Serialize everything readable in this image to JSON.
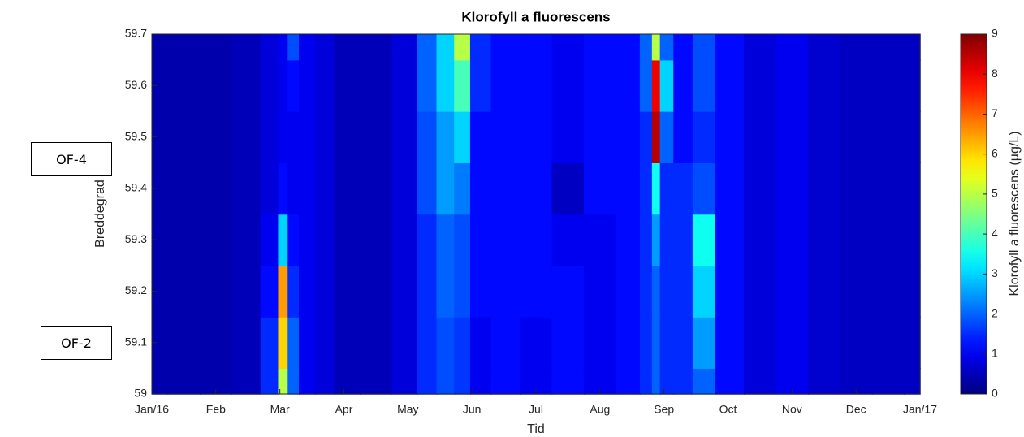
{
  "chart_data": {
    "type": "contour",
    "title": "Klorofyll a fluorescens",
    "xlabel": "Tid",
    "ylabel": "Breddegrad",
    "colorbar_label": "Klorofyll a fluorescens (µg/L)",
    "colormap": "jet",
    "annotations": [
      "OF-4",
      "OF-2"
    ],
    "xlim": [
      0,
      12
    ],
    "xticks": [
      {
        "value": 0,
        "label": "Jan/16"
      },
      {
        "value": 1,
        "label": "Feb"
      },
      {
        "value": 2,
        "label": "Mar"
      },
      {
        "value": 3,
        "label": "Apr"
      },
      {
        "value": 4,
        "label": "May"
      },
      {
        "value": 5,
        "label": "Jun"
      },
      {
        "value": 6,
        "label": "Jul"
      },
      {
        "value": 7,
        "label": "Aug"
      },
      {
        "value": 8,
        "label": "Sep"
      },
      {
        "value": 9,
        "label": "Oct"
      },
      {
        "value": 10,
        "label": "Nov"
      },
      {
        "value": 11,
        "label": "Dec"
      },
      {
        "value": 12,
        "label": "Jan/17"
      }
    ],
    "ylim": [
      59,
      59.7
    ],
    "yticks": [
      59,
      59.1,
      59.2,
      59.3,
      59.4,
      59.5,
      59.6,
      59.7
    ],
    "clim": [
      0,
      9
    ],
    "cticks": [
      0,
      1,
      2,
      3,
      4,
      5,
      6,
      7,
      8,
      9
    ],
    "x": [
      0,
      0.5,
      1,
      1.5,
      1.9,
      2.05,
      2.2,
      2.4,
      2.7,
      3,
      3.5,
      4,
      4.3,
      4.6,
      4.85,
      5.1,
      5.5,
      6,
      6.5,
      7,
      7.5,
      7.75,
      7.88,
      8,
      8.3,
      8.6,
      9,
      9.5,
      10,
      10.5,
      11,
      11.5,
      12
    ],
    "y": [
      59,
      59.1,
      59.2,
      59.3,
      59.4,
      59.5,
      59.6,
      59.7
    ],
    "z": [
      [
        0.4,
        0.4,
        0.4,
        0.5,
        1.5,
        5,
        2,
        1,
        0.8,
        0.5,
        0.5,
        0.8,
        1.5,
        1.8,
        1.6,
        1,
        1.2,
        1,
        1.2,
        1,
        1.2,
        1.5,
        2,
        1.5,
        1.5,
        2,
        1.2,
        0.8,
        1,
        0.7,
        0.6,
        0.6,
        0.6
      ],
      [
        0.4,
        0.4,
        0.4,
        0.5,
        1.5,
        6,
        2,
        1,
        0.8,
        0.5,
        0.5,
        0.8,
        1.5,
        1.8,
        1.6,
        1,
        1.2,
        1,
        1.2,
        1,
        1.2,
        1.5,
        2,
        1.5,
        1.5,
        2.5,
        1.2,
        0.8,
        1,
        0.7,
        0.6,
        0.6,
        0.6
      ],
      [
        0.4,
        0.4,
        0.4,
        0.5,
        1.2,
        6.5,
        1.5,
        1,
        0.8,
        0.5,
        0.5,
        0.8,
        1.5,
        2,
        1.8,
        1.2,
        1.2,
        1.2,
        1.2,
        1,
        1.2,
        1.5,
        2,
        1.5,
        1.5,
        3,
        1.2,
        0.8,
        1,
        0.7,
        0.6,
        0.6,
        0.6
      ],
      [
        0.4,
        0.4,
        0.4,
        0.5,
        1,
        3,
        1.2,
        1,
        0.8,
        0.5,
        0.5,
        0.8,
        1.5,
        2,
        1.8,
        1.2,
        1.2,
        1.2,
        1,
        1,
        1.2,
        1.5,
        2.5,
        1.5,
        1.5,
        3.5,
        1.2,
        0.8,
        1,
        0.7,
        0.6,
        0.6,
        0.6
      ],
      [
        0.4,
        0.4,
        0.4,
        0.5,
        0.8,
        1.2,
        1,
        1,
        0.8,
        0.5,
        0.5,
        0.8,
        1.8,
        2.5,
        2.2,
        1.2,
        1.2,
        1.2,
        0.6,
        1.2,
        1.2,
        1.5,
        3.5,
        1.5,
        1.5,
        1.8,
        1.2,
        0.8,
        1,
        0.7,
        0.6,
        0.6,
        0.6
      ],
      [
        0.4,
        0.4,
        0.4,
        0.5,
        0.8,
        1,
        1,
        1,
        0.8,
        0.5,
        0.5,
        0.8,
        1.8,
        2.5,
        3,
        1.2,
        1.2,
        1.2,
        1,
        1.2,
        1.2,
        1.5,
        8.5,
        2,
        1.2,
        1.5,
        1.2,
        0.8,
        1,
        0.7,
        0.6,
        0.6,
        0.6
      ],
      [
        0.4,
        0.4,
        0.4,
        0.5,
        0.8,
        1,
        1.2,
        1,
        0.8,
        0.5,
        0.5,
        0.8,
        2,
        3,
        4,
        1.5,
        1.2,
        1.2,
        1,
        1.2,
        1.2,
        2,
        8,
        3,
        1.2,
        1.8,
        1.2,
        0.8,
        1,
        0.7,
        0.6,
        0.6,
        0.6
      ],
      [
        0.4,
        0.4,
        0.4,
        0.5,
        0.8,
        1,
        1.8,
        1,
        0.8,
        0.5,
        0.5,
        0.8,
        2,
        3,
        5,
        1.5,
        1.2,
        1.2,
        1,
        1.2,
        1.2,
        2,
        5,
        2,
        1.2,
        1.8,
        1.2,
        0.8,
        1,
        0.7,
        0.6,
        0.6,
        0.6
      ]
    ]
  }
}
